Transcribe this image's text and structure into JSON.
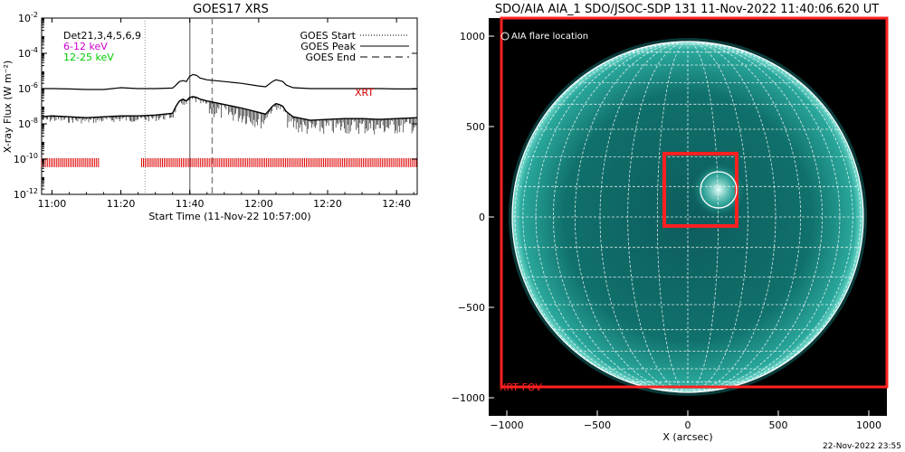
{
  "chart_data": [
    {
      "type": "line",
      "title": "GOES17 XRS",
      "xlabel": "Start Time (11-Nov-22 10:57:00)",
      "ylabel": "X-ray Flux (W m⁻²)",
      "x_ticks": [
        "11:00",
        "11:20",
        "11:40",
        "12:00",
        "12:20",
        "12:40"
      ],
      "x_tick_minutes": [
        0,
        20,
        40,
        60,
        80,
        100
      ],
      "xlim_minutes": [
        -3,
        106
      ],
      "y_log_ticks": [
        -12,
        -10,
        -8,
        -6,
        -4,
        -2
      ],
      "ylim_log": [
        -12,
        -2
      ],
      "legend_left": [
        {
          "text": "Det21,3,4,5,6,9",
          "color": "#000000"
        },
        {
          "text": "6-12 keV",
          "color": "#cc00cc"
        },
        {
          "text": "12-25 keV",
          "color": "#00cc00"
        }
      ],
      "legend_right": [
        {
          "text": "GOES Start",
          "style": "dotted"
        },
        {
          "text": "GOES Peak",
          "style": "solid"
        },
        {
          "text": "GOES End",
          "style": "dashed"
        }
      ],
      "vlines": {
        "start": 27,
        "peak": 40,
        "end": 46.5
      },
      "annotation": "XRT",
      "series": [
        {
          "x": [
            -3,
            0,
            5,
            10,
            15,
            20,
            25,
            30,
            35,
            36,
            37,
            38,
            39,
            40,
            41,
            42,
            43,
            45,
            50,
            55,
            60,
            62,
            64,
            65,
            66,
            67,
            68,
            70,
            75,
            80,
            85,
            90,
            95,
            100,
            106
          ],
          "y": [
            -6.0,
            -6.0,
            -6.02,
            -6.05,
            -6.05,
            -5.95,
            -6.0,
            -6.0,
            -5.97,
            -5.8,
            -5.6,
            -5.55,
            -5.6,
            -5.3,
            -5.2,
            -5.25,
            -5.4,
            -5.5,
            -5.6,
            -5.7,
            -5.85,
            -5.9,
            -5.6,
            -5.5,
            -5.55,
            -5.6,
            -5.8,
            -5.95,
            -6.0,
            -6.0,
            -6.0,
            -6.0,
            -6.0,
            -6.02,
            -6.02
          ]
        },
        {
          "x": [
            -3,
            0,
            5,
            10,
            15,
            20,
            25,
            30,
            35,
            36,
            37,
            38,
            39,
            40,
            41,
            42,
            43,
            45,
            50,
            55,
            60,
            62,
            64,
            65,
            66,
            67,
            68,
            70,
            75,
            80,
            85,
            90,
            95,
            100,
            106
          ],
          "y": [
            -7.6,
            -7.55,
            -7.6,
            -7.65,
            -7.6,
            -7.55,
            -7.55,
            -7.5,
            -7.4,
            -7.0,
            -6.7,
            -6.6,
            -6.7,
            -6.5,
            -6.45,
            -6.5,
            -6.6,
            -6.7,
            -6.9,
            -7.1,
            -7.35,
            -7.45,
            -7.0,
            -6.85,
            -6.9,
            -7.0,
            -7.3,
            -7.6,
            -7.8,
            -7.75,
            -7.7,
            -7.7,
            -7.75,
            -7.7,
            -7.65
          ]
        }
      ],
      "red_ticks_ranges": [
        [
          -3,
          14
        ],
        [
          26,
          106
        ]
      ]
    },
    {
      "type": "scatter",
      "title": "SDO/AIA AIA_1 SDO/JSOC-SDP 131 11-Nov-2022 11:40:06.620 UT",
      "xlabel": "X (arcsec)",
      "ylabel": "",
      "x_ticks": [
        -1000,
        -500,
        0,
        500,
        1000
      ],
      "y_ticks": [
        1000,
        500,
        0,
        -500,
        -1000
      ],
      "xlim": [
        -1100,
        1100
      ],
      "ylim": [
        -1100,
        1100
      ],
      "solar_radius_arcsec": 970,
      "legend_text": "AIA flare location",
      "xrt_fov": {
        "label": "XRT FOV",
        "x": [
          -1030,
          1100
        ],
        "y": [
          -940,
          1100
        ]
      },
      "red_box": {
        "x": [
          -130,
          270
        ],
        "y": [
          -50,
          350
        ]
      },
      "flare_circle": {
        "x": 170,
        "y": 150,
        "r": 100
      },
      "date_stamp": "22-Nov-2022 23:55"
    }
  ]
}
